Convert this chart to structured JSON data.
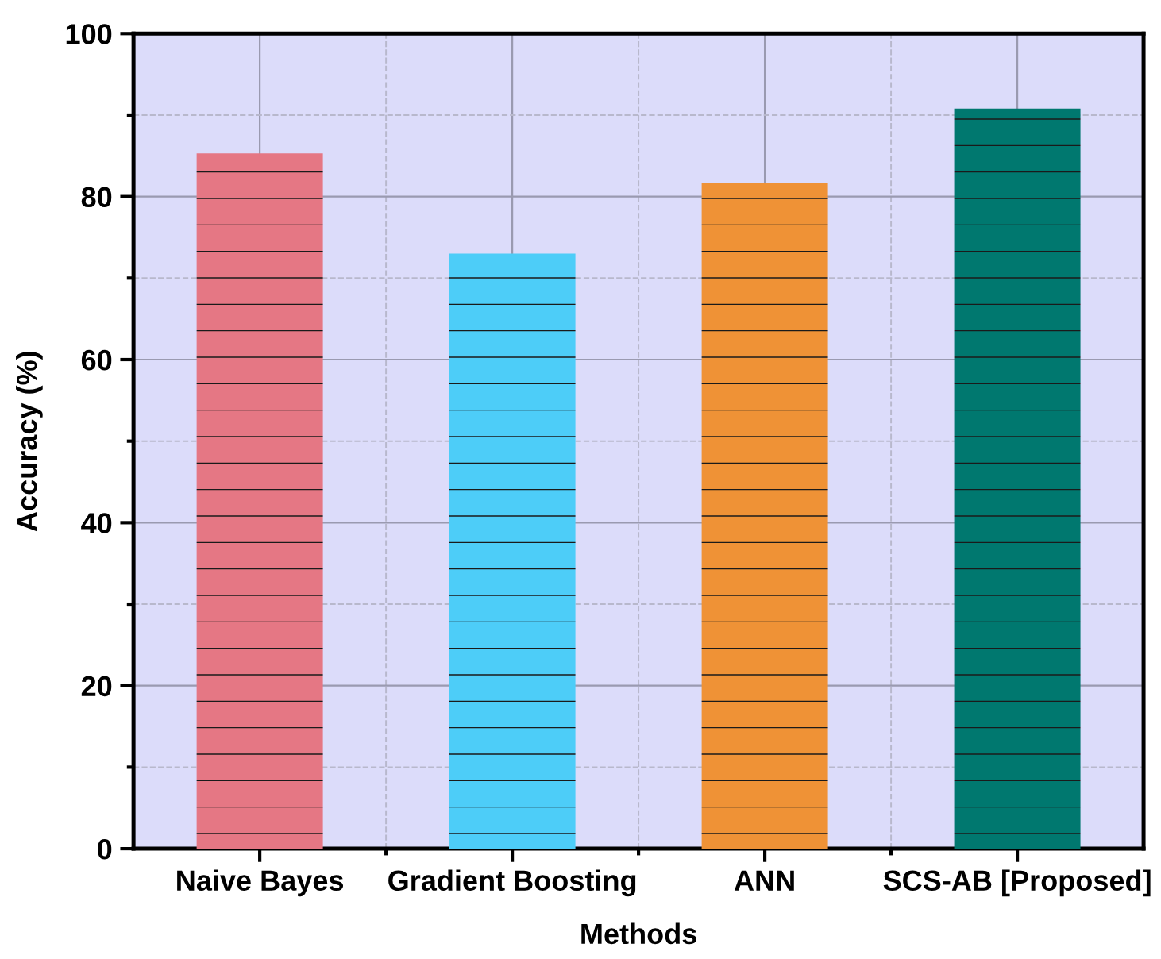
{
  "chart_data": {
    "type": "bar",
    "xlabel": "Methods",
    "ylabel": "Accuracy (%)",
    "categories": [
      "Naive Bayes",
      "Gradient Boosting",
      "ANN",
      "SCS-AB [Proposed]"
    ],
    "values": [
      85.3,
      73.0,
      81.7,
      90.8
    ],
    "colors": [
      "#e57784",
      "#4dcdf8",
      "#ef9236",
      "#00786f"
    ],
    "ylim": [
      0,
      100
    ],
    "yticks": [
      0,
      20,
      40,
      60,
      80,
      100
    ],
    "grid": true
  }
}
